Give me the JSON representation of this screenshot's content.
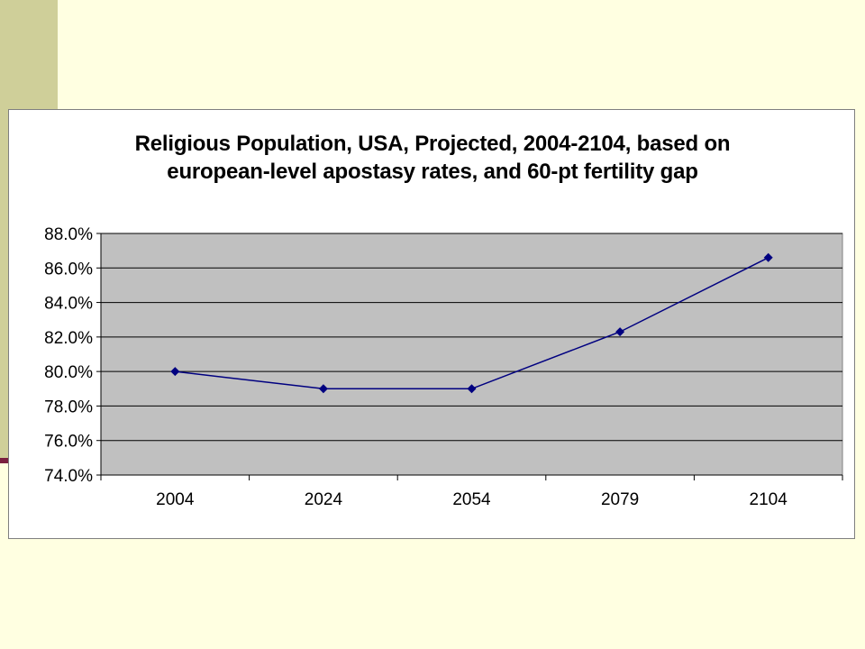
{
  "colors": {
    "page_background": "#ffffe1",
    "side_band": "#cfcf99",
    "side_tick": "#7a1f3f",
    "plot_area": "#c0c0c0",
    "series_line": "#000080"
  },
  "chart_data": {
    "type": "line",
    "title_lines": [
      "Religious Population, USA, Projected, 2004-2104, based on",
      "european-level apostasy rates, and 60-pt fertility gap"
    ],
    "categories": [
      "2004",
      "2024",
      "2054",
      "2079",
      "2104"
    ],
    "series": [
      {
        "values": [
          80.0,
          79.0,
          79.0,
          82.3,
          86.6
        ],
        "marker": "diamond"
      }
    ],
    "ylim": [
      74.0,
      88.0
    ],
    "ytick_step": 2.0,
    "y_tick_labels": [
      "88.0%",
      "86.0%",
      "84.0%",
      "82.0%",
      "80.0%",
      "78.0%",
      "76.0%",
      "74.0%"
    ],
    "y_format": "percent_1dp",
    "grid": {
      "horizontal": true,
      "vertical": false
    },
    "legend": "none",
    "xlabel": "",
    "ylabel": ""
  }
}
